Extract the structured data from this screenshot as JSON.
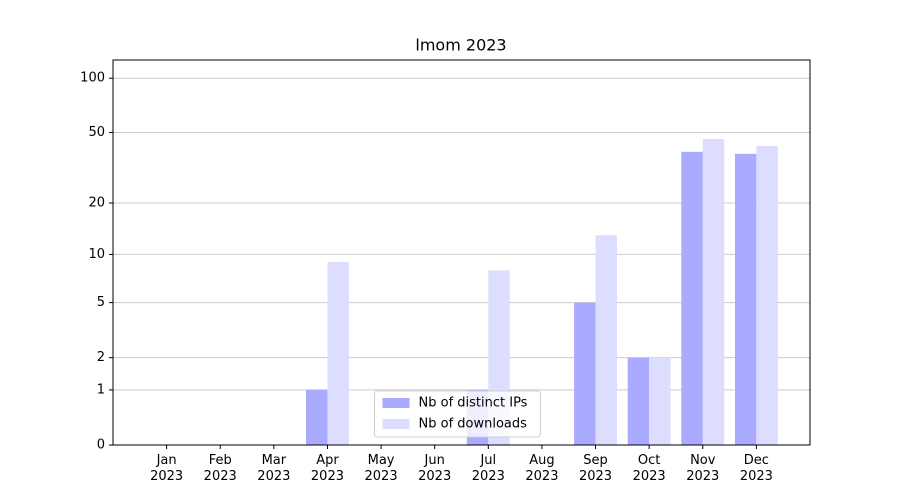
{
  "chart_data": {
    "type": "bar",
    "title": "lmom 2023",
    "categories": [
      "Jan\n2023",
      "Feb\n2023",
      "Mar\n2023",
      "Apr\n2023",
      "May\n2023",
      "Jun\n2023",
      "Jul\n2023",
      "Aug\n2023",
      "Sep\n2023",
      "Oct\n2023",
      "Nov\n2023",
      "Dec\n2023"
    ],
    "series": [
      {
        "name": "Nb of distinct IPs",
        "color": "#aaaaff",
        "values": [
          0,
          0,
          0,
          1,
          0,
          0,
          1,
          0,
          5,
          2,
          39,
          38
        ]
      },
      {
        "name": "Nb of downloads",
        "color": "#ddddff",
        "values": [
          0,
          0,
          0,
          9,
          0,
          0,
          8,
          0,
          13,
          2,
          46,
          42
        ]
      }
    ],
    "yscale": "log1p",
    "ylim": [
      0,
      126
    ],
    "yticks": [
      0,
      1,
      2,
      5,
      10,
      20,
      50,
      100
    ],
    "grid": true,
    "legend": "lower center"
  }
}
